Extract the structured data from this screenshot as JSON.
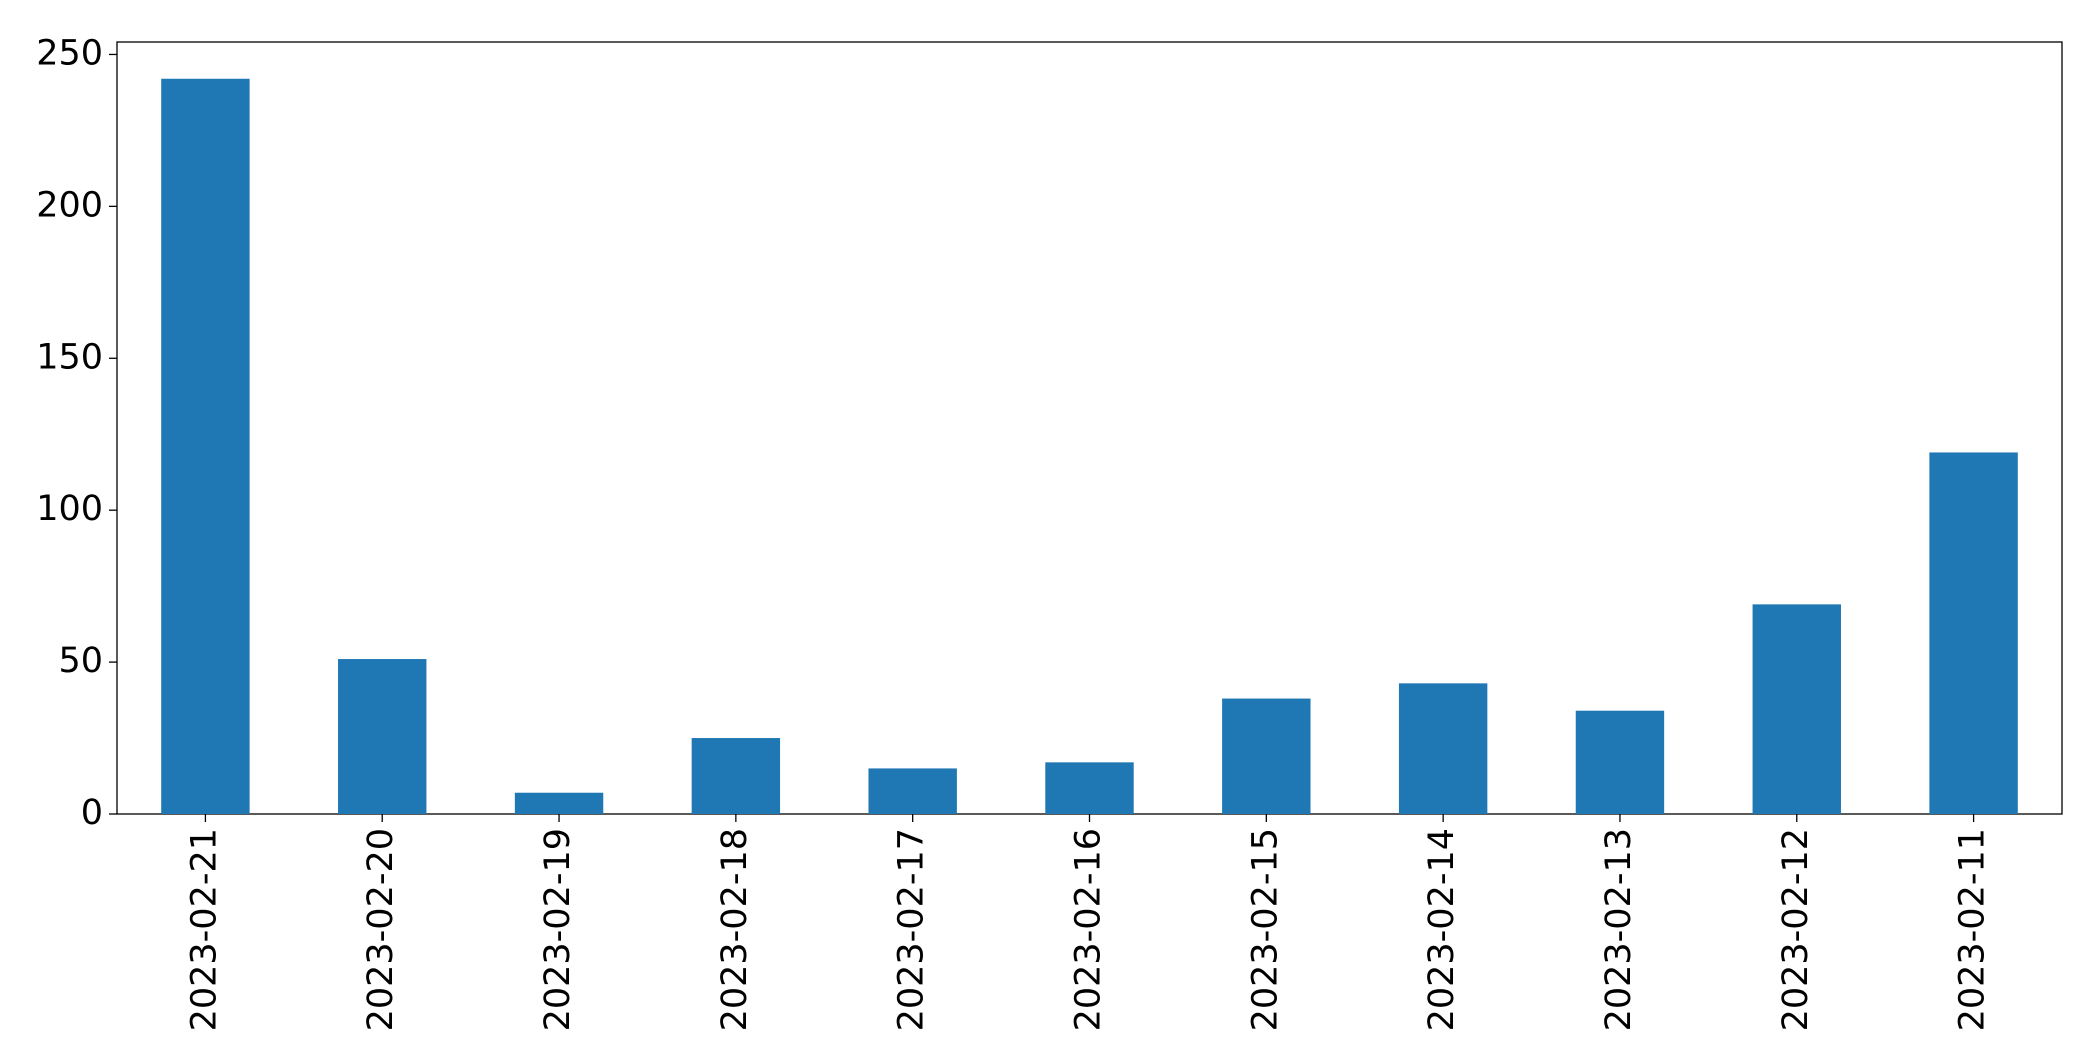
{
  "chart_data": {
    "type": "bar",
    "categories": [
      "2023-02-21",
      "2023-02-20",
      "2023-02-19",
      "2023-02-18",
      "2023-02-17",
      "2023-02-16",
      "2023-02-15",
      "2023-02-14",
      "2023-02-13",
      "2023-02-12",
      "2023-02-11"
    ],
    "values": [
      242,
      51,
      7,
      25,
      15,
      17,
      38,
      43,
      34,
      69,
      119
    ],
    "color": "#1f77b4",
    "ylim": [
      0,
      254.1
    ],
    "yticks": [
      0,
      50,
      100,
      150,
      200,
      250
    ],
    "grid": false
  }
}
